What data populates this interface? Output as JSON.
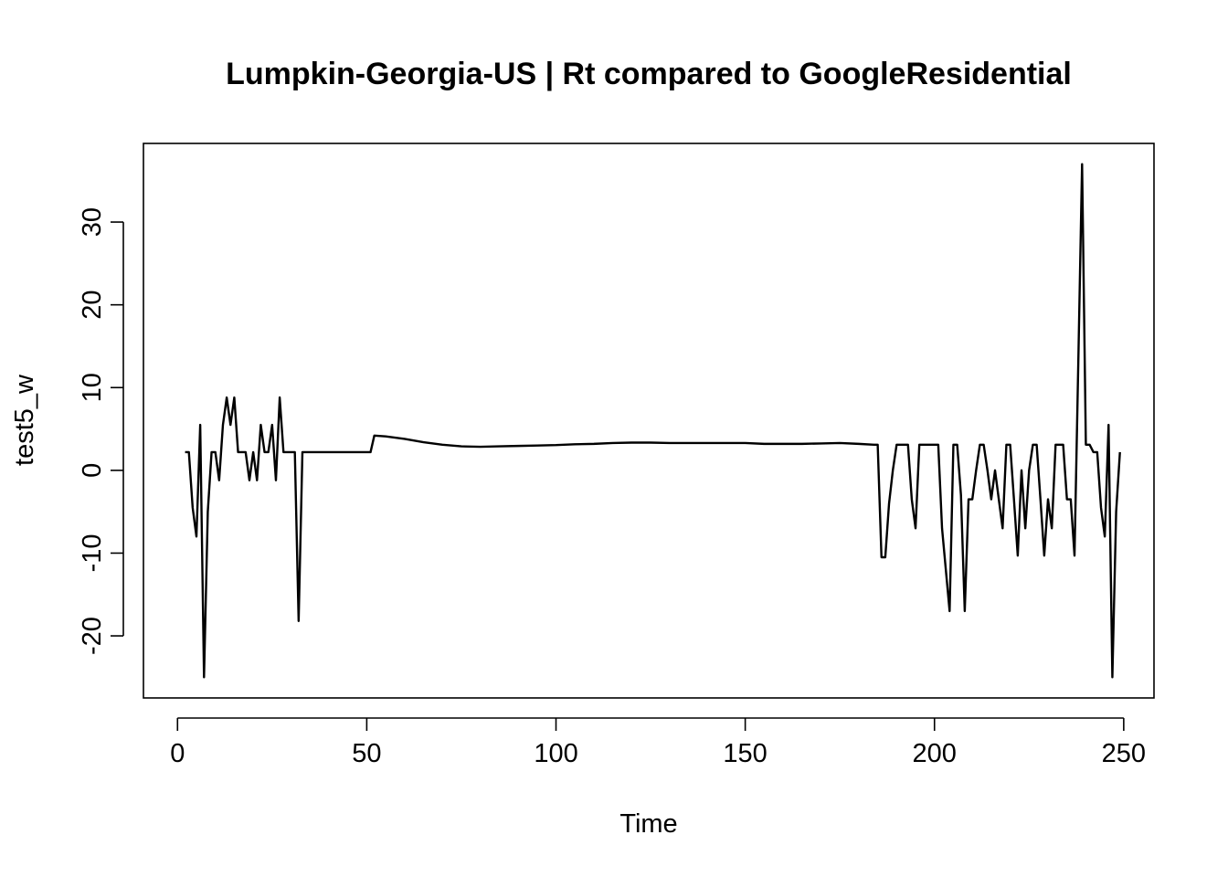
{
  "chart_data": {
    "type": "line",
    "title": "Lumpkin-Georgia-US | Rt compared to GoogleResidential",
    "xlabel": "Time",
    "ylabel": "test5_w",
    "xlim": [
      -9,
      258
    ],
    "ylim": [
      -27.5,
      39.5
    ],
    "x_ticks": [
      0,
      50,
      100,
      150,
      200,
      250
    ],
    "y_ticks": [
      -20,
      -10,
      0,
      10,
      20,
      30
    ],
    "grid": false,
    "series": [
      {
        "points": [
          [
            2,
            2.2
          ],
          [
            3,
            2.2
          ],
          [
            4,
            -4.5
          ],
          [
            5,
            -8
          ],
          [
            6,
            5.5
          ],
          [
            7,
            -25
          ],
          [
            8,
            -5
          ],
          [
            9,
            2.2
          ],
          [
            10,
            2.2
          ],
          [
            11,
            -1.2
          ],
          [
            12,
            5.5
          ],
          [
            13,
            8.8
          ],
          [
            14,
            5.5
          ],
          [
            15,
            8.8
          ],
          [
            16,
            2.2
          ],
          [
            17,
            2.2
          ],
          [
            18,
            2.2
          ],
          [
            19,
            -1.2
          ],
          [
            20,
            2.2
          ],
          [
            21,
            -1.2
          ],
          [
            22,
            5.5
          ],
          [
            23,
            2.2
          ],
          [
            24,
            2.2
          ],
          [
            25,
            5.5
          ],
          [
            26,
            -1.2
          ],
          [
            27,
            8.8
          ],
          [
            28,
            2.2
          ],
          [
            29,
            2.2
          ],
          [
            30,
            2.2
          ],
          [
            31,
            2.2
          ],
          [
            32,
            -18.2
          ],
          [
            33,
            2.2
          ],
          [
            35,
            2.2
          ],
          [
            40,
            2.2
          ],
          [
            45,
            2.2
          ],
          [
            50,
            2.2
          ],
          [
            51,
            2.2
          ],
          [
            52,
            4.2
          ],
          [
            55,
            4.1
          ],
          [
            60,
            3.8
          ],
          [
            65,
            3.4
          ],
          [
            70,
            3.1
          ],
          [
            75,
            2.9
          ],
          [
            80,
            2.85
          ],
          [
            85,
            2.9
          ],
          [
            90,
            2.95
          ],
          [
            95,
            3.0
          ],
          [
            100,
            3.05
          ],
          [
            105,
            3.15
          ],
          [
            110,
            3.2
          ],
          [
            115,
            3.3
          ],
          [
            120,
            3.35
          ],
          [
            125,
            3.35
          ],
          [
            130,
            3.3
          ],
          [
            135,
            3.3
          ],
          [
            140,
            3.3
          ],
          [
            145,
            3.3
          ],
          [
            150,
            3.3
          ],
          [
            155,
            3.2
          ],
          [
            160,
            3.2
          ],
          [
            165,
            3.2
          ],
          [
            170,
            3.25
          ],
          [
            175,
            3.3
          ],
          [
            180,
            3.2
          ],
          [
            184,
            3.1
          ],
          [
            185,
            3.1
          ],
          [
            186,
            -10.5
          ],
          [
            187,
            -10.5
          ],
          [
            188,
            -4
          ],
          [
            189,
            0
          ],
          [
            190,
            3.1
          ],
          [
            191,
            3.1
          ],
          [
            192,
            3.1
          ],
          [
            193,
            3.1
          ],
          [
            194,
            -3.5
          ],
          [
            195,
            -7
          ],
          [
            196,
            3.1
          ],
          [
            197,
            3.1
          ],
          [
            198,
            3.1
          ],
          [
            199,
            3.1
          ],
          [
            200,
            3.1
          ],
          [
            201,
            3.1
          ],
          [
            202,
            -7
          ],
          [
            203,
            -12
          ],
          [
            204,
            -17
          ],
          [
            205,
            3.1
          ],
          [
            206,
            3.1
          ],
          [
            207,
            -3
          ],
          [
            208,
            -17
          ],
          [
            209,
            -3.5
          ],
          [
            210,
            -3.5
          ],
          [
            211,
            0
          ],
          [
            212,
            3.1
          ],
          [
            213,
            3.1
          ],
          [
            214,
            0
          ],
          [
            215,
            -3.5
          ],
          [
            216,
            0
          ],
          [
            217,
            -3.5
          ],
          [
            218,
            -7
          ],
          [
            219,
            3.1
          ],
          [
            220,
            3.1
          ],
          [
            221,
            -3.5
          ],
          [
            222,
            -10.3
          ],
          [
            223,
            0
          ],
          [
            224,
            -7
          ],
          [
            225,
            0
          ],
          [
            226,
            3.1
          ],
          [
            227,
            3.1
          ],
          [
            228,
            -3.5
          ],
          [
            229,
            -10.3
          ],
          [
            230,
            -3.5
          ],
          [
            231,
            -7
          ],
          [
            232,
            3.1
          ],
          [
            233,
            3.1
          ],
          [
            234,
            3.1
          ],
          [
            235,
            -3.5
          ],
          [
            236,
            -3.5
          ],
          [
            237,
            -10.3
          ],
          [
            238,
            13
          ],
          [
            239,
            37
          ],
          [
            240,
            3.1
          ],
          [
            241,
            3.1
          ],
          [
            242,
            2.2
          ],
          [
            243,
            2.2
          ],
          [
            244,
            -4.5
          ],
          [
            245,
            -8
          ],
          [
            246,
            5.5
          ],
          [
            247,
            -25
          ],
          [
            248,
            -5
          ],
          [
            249,
            2.2
          ]
        ]
      }
    ]
  }
}
